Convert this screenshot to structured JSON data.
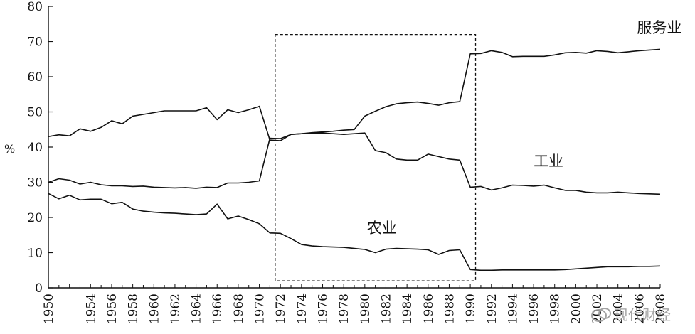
{
  "chart_data": {
    "type": "line",
    "title": "",
    "xlabel": "",
    "ylabel": "%",
    "ylim": [
      0,
      80
    ],
    "yticks": [
      0,
      10,
      20,
      30,
      40,
      50,
      60,
      70,
      80
    ],
    "xlim": [
      1950,
      2008
    ],
    "xtick_labels": [
      "1950",
      "1954",
      "1956",
      "1958",
      "1960",
      "1962",
      "1964",
      "1966",
      "1968",
      "1970",
      "1972",
      "1974",
      "1976",
      "1978",
      "1980",
      "1982",
      "1984",
      "1986",
      "1988",
      "1990",
      "1992",
      "1994",
      "1996",
      "1998",
      "2000",
      "2002",
      "2004",
      "2006",
      "2008"
    ],
    "grid": false,
    "highlight_box": {
      "x_range": [
        1971.5,
        1990.5
      ],
      "y_range": [
        2,
        72
      ],
      "style": "dashed"
    },
    "series": [
      {
        "name": "服务业",
        "x": [
          1950,
          1951,
          1952,
          1953,
          1954,
          1955,
          1956,
          1957,
          1958,
          1959,
          1960,
          1961,
          1962,
          1963,
          1964,
          1965,
          1966,
          1967,
          1968,
          1969,
          1970,
          1971,
          1972,
          1973,
          1974,
          1975,
          1976,
          1977,
          1978,
          1979,
          1980,
          1981,
          1982,
          1983,
          1984,
          1985,
          1986,
          1987,
          1988,
          1989,
          1990,
          1991,
          1992,
          1993,
          1994,
          1995,
          1996,
          1997,
          1998,
          1999,
          2000,
          2001,
          2002,
          2003,
          2004,
          2005,
          2006,
          2007,
          2008
        ],
        "values": [
          43.0,
          43.5,
          43.2,
          45.2,
          44.5,
          45.6,
          47.5,
          46.6,
          48.8,
          49.3,
          49.8,
          50.3,
          50.3,
          50.3,
          50.3,
          51.2,
          47.8,
          50.6,
          49.8,
          50.6,
          51.6,
          42.0,
          41.8,
          43.6,
          43.8,
          44.1,
          44.3,
          44.5,
          44.8,
          45.0,
          48.8,
          50.2,
          51.5,
          52.3,
          52.6,
          52.8,
          52.4,
          51.9,
          52.6,
          52.9,
          66.5,
          66.6,
          67.4,
          66.9,
          65.7,
          65.8,
          65.8,
          65.8,
          66.2,
          66.8,
          66.9,
          66.7,
          67.4,
          67.2,
          66.8,
          67.1,
          67.4,
          67.6,
          67.8
        ]
      },
      {
        "name": "工业",
        "x": [
          1950,
          1951,
          1952,
          1953,
          1954,
          1955,
          1956,
          1957,
          1958,
          1959,
          1960,
          1961,
          1962,
          1963,
          1964,
          1965,
          1966,
          1967,
          1968,
          1969,
          1970,
          1971,
          1972,
          1973,
          1974,
          1975,
          1976,
          1977,
          1978,
          1979,
          1980,
          1981,
          1982,
          1983,
          1984,
          1985,
          1986,
          1987,
          1988,
          1989,
          1990,
          1991,
          1992,
          1993,
          1994,
          1995,
          1996,
          1997,
          1998,
          1999,
          2000,
          2001,
          2002,
          2003,
          2004,
          2005,
          2006,
          2007,
          2008
        ],
        "values": [
          30.0,
          31.0,
          30.6,
          29.5,
          30.0,
          29.3,
          29.0,
          29.0,
          28.8,
          28.9,
          28.6,
          28.5,
          28.4,
          28.5,
          28.3,
          28.6,
          28.5,
          29.8,
          29.8,
          30.0,
          30.4,
          42.5,
          42.4,
          43.6,
          43.8,
          44.0,
          44.0,
          43.8,
          43.6,
          43.8,
          44.0,
          39.0,
          38.4,
          36.6,
          36.3,
          36.3,
          38.0,
          37.3,
          36.6,
          36.3,
          28.6,
          28.8,
          27.8,
          28.4,
          29.2,
          29.1,
          28.9,
          29.2,
          28.4,
          27.7,
          27.7,
          27.2,
          27.0,
          27.0,
          27.2,
          27.0,
          26.8,
          26.7,
          26.6
        ]
      },
      {
        "name": "农业",
        "x": [
          1950,
          1951,
          1952,
          1953,
          1954,
          1955,
          1956,
          1957,
          1958,
          1959,
          1960,
          1961,
          1962,
          1963,
          1964,
          1965,
          1966,
          1967,
          1968,
          1969,
          1970,
          1971,
          1972,
          1973,
          1974,
          1975,
          1976,
          1977,
          1978,
          1979,
          1980,
          1981,
          1982,
          1983,
          1984,
          1985,
          1986,
          1987,
          1988,
          1989,
          1990,
          1991,
          1992,
          1993,
          1994,
          1995,
          1996,
          1997,
          1998,
          1999,
          2000,
          2001,
          2002,
          2003,
          2004,
          2005,
          2006,
          2007,
          2008
        ],
        "values": [
          26.8,
          25.3,
          26.3,
          25.0,
          25.2,
          25.2,
          23.9,
          24.3,
          22.4,
          21.8,
          21.5,
          21.3,
          21.2,
          21.0,
          20.8,
          21.0,
          23.8,
          19.6,
          20.4,
          19.4,
          18.2,
          15.6,
          15.5,
          14.0,
          12.3,
          11.9,
          11.7,
          11.6,
          11.5,
          11.2,
          10.9,
          10.0,
          11.0,
          11.2,
          11.1,
          11.0,
          10.8,
          9.5,
          10.6,
          10.8,
          5.2,
          5.0,
          5.0,
          5.1,
          5.1,
          5.1,
          5.1,
          5.1,
          5.1,
          5.2,
          5.4,
          5.6,
          5.8,
          6.0,
          6.0,
          6.0,
          6.1,
          6.1,
          6.2
        ]
      }
    ],
    "series_labels": [
      {
        "text": "服务业",
        "x": 2005.8,
        "y": 72.5
      },
      {
        "text": "工业",
        "x": 1996.0,
        "y": 34.5
      },
      {
        "text": "农业",
        "x": 1980.2,
        "y": 15.6
      }
    ]
  },
  "watermark": {
    "text": "现代财经",
    "icon": "wechat-logo-icon"
  }
}
